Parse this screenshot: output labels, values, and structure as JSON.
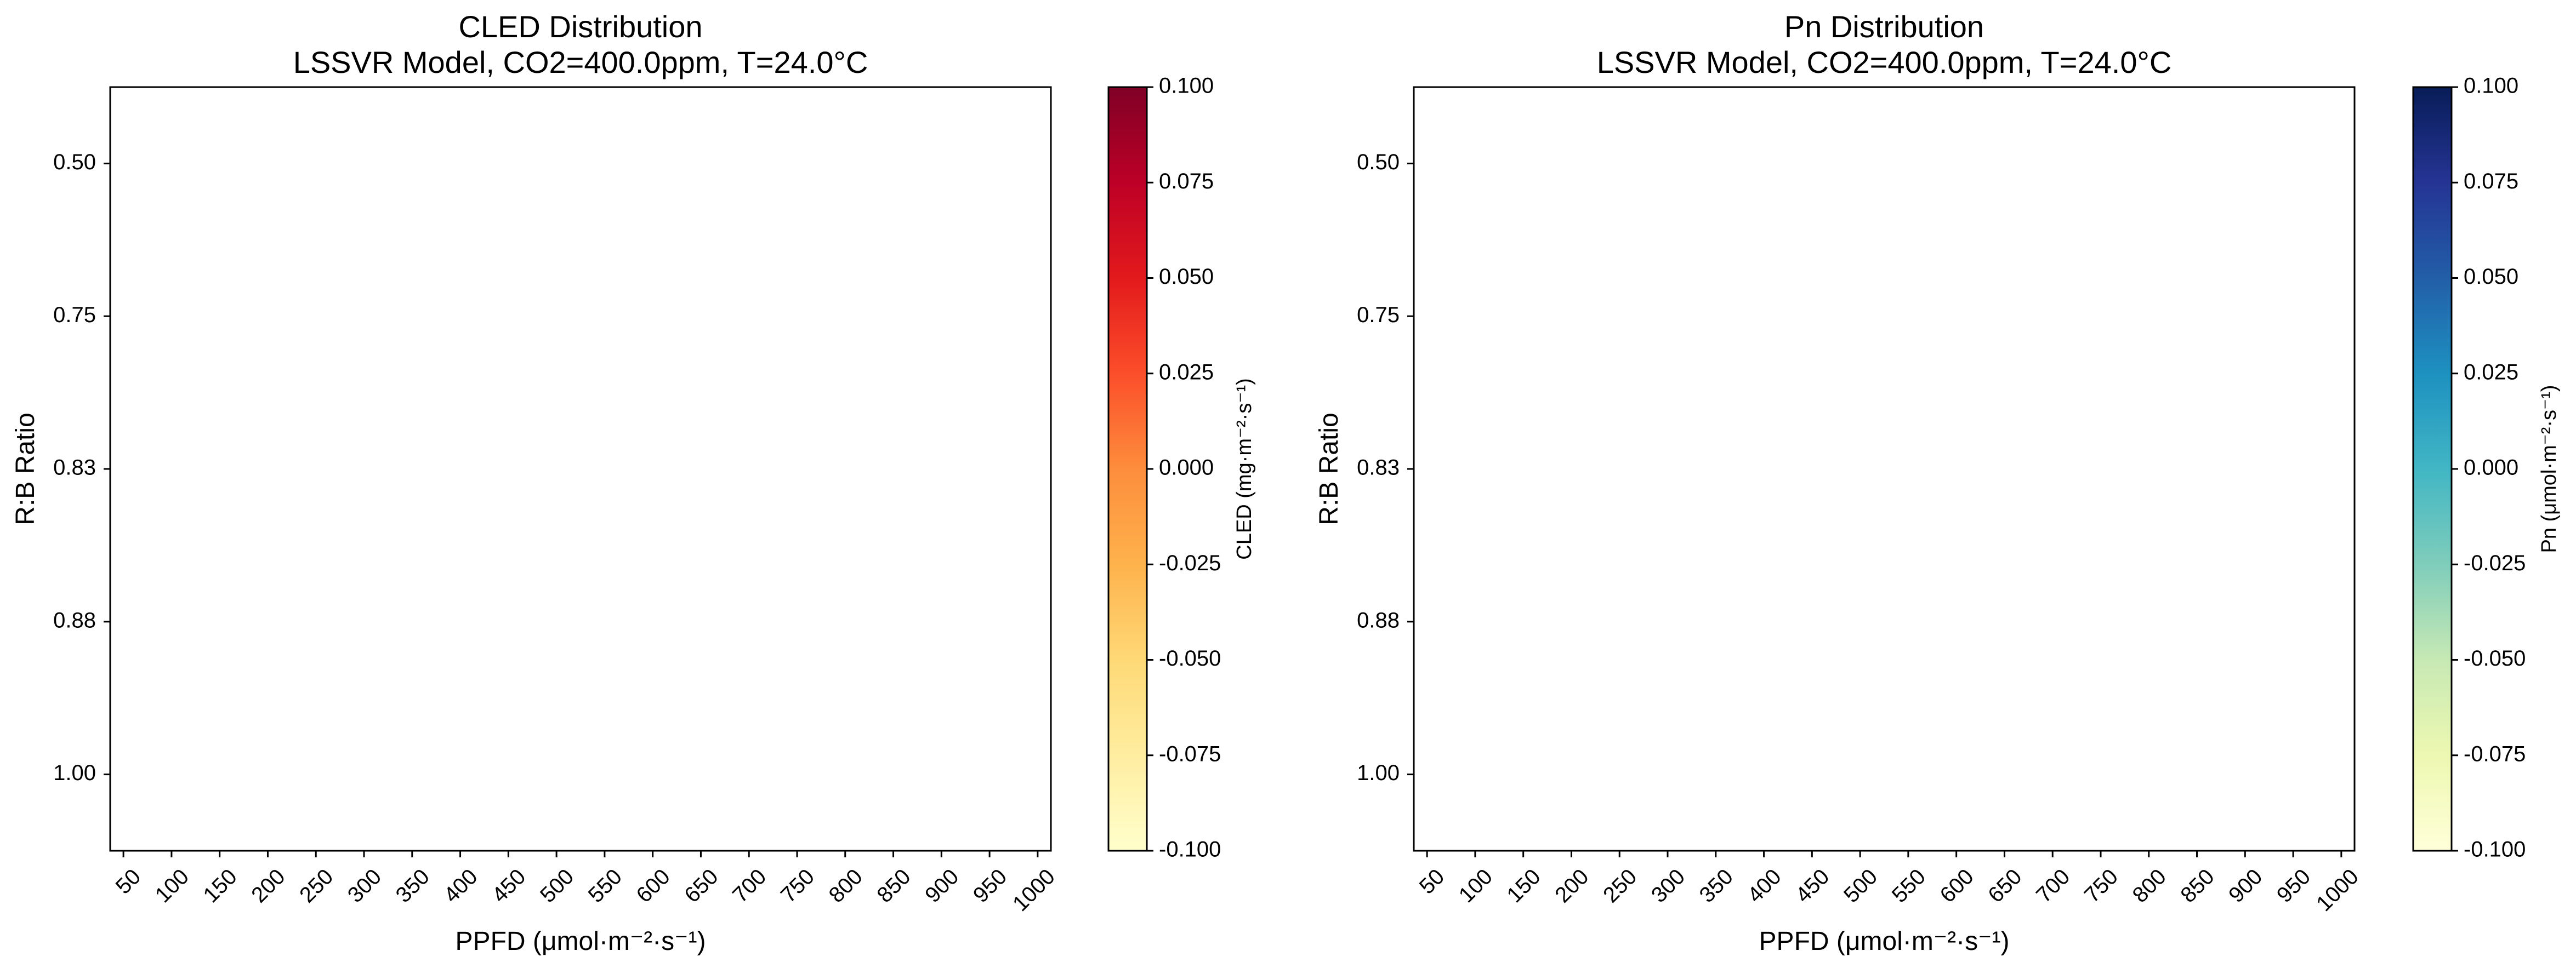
{
  "chart_data": [
    {
      "type": "heatmap",
      "title": "CLED Distribution",
      "subtitle": "LSSVR Model, CO2=400.0ppm, T=24.0°C",
      "xlabel": "PPFD (μmol·m⁻²·s⁻¹)",
      "ylabel": "R:B Ratio",
      "x_categories": [
        "50",
        "100",
        "150",
        "200",
        "250",
        "300",
        "350",
        "400",
        "450",
        "500",
        "550",
        "600",
        "650",
        "700",
        "750",
        "800",
        "850",
        "900",
        "950",
        "1000"
      ],
      "y_categories": [
        "0.50",
        "0.75",
        "0.83",
        "0.88",
        "1.00"
      ],
      "values": [],
      "grid": false,
      "colorbar": {
        "label": "CLED (mg·m⁻²·s⁻¹)",
        "colormap": "YlOrRd",
        "range": [
          -0.1,
          0.1
        ],
        "ticks": [
          "0.100",
          "0.075",
          "0.050",
          "0.025",
          "0.000",
          "-0.025",
          "-0.050",
          "-0.075",
          "-0.100"
        ],
        "colors": [
          "#ffffcc",
          "#ffeda0",
          "#fed976",
          "#feb24c",
          "#fd8d3c",
          "#fc4e2a",
          "#e31a1c",
          "#bd0026",
          "#800026"
        ]
      }
    },
    {
      "type": "heatmap",
      "title": "Pn Distribution",
      "subtitle": "LSSVR Model, CO2=400.0ppm, T=24.0°C",
      "xlabel": "PPFD (μmol·m⁻²·s⁻¹)",
      "ylabel": "R:B Ratio",
      "x_categories": [
        "50",
        "100",
        "150",
        "200",
        "250",
        "300",
        "350",
        "400",
        "450",
        "500",
        "550",
        "600",
        "650",
        "700",
        "750",
        "800",
        "850",
        "900",
        "950",
        "1000"
      ],
      "y_categories": [
        "0.50",
        "0.75",
        "0.83",
        "0.88",
        "1.00"
      ],
      "values": [],
      "grid": false,
      "colorbar": {
        "label": "Pn (μmol·m⁻²·s⁻¹)",
        "colormap": "YlGnBu",
        "range": [
          -0.1,
          0.1
        ],
        "ticks": [
          "0.100",
          "0.075",
          "0.050",
          "0.025",
          "0.000",
          "-0.025",
          "-0.050",
          "-0.075",
          "-0.100"
        ],
        "colors": [
          "#ffffd9",
          "#edf8b1",
          "#c7e9b4",
          "#7fcdbb",
          "#41b6c4",
          "#1d91c0",
          "#225ea8",
          "#253494",
          "#081d58"
        ]
      }
    }
  ]
}
